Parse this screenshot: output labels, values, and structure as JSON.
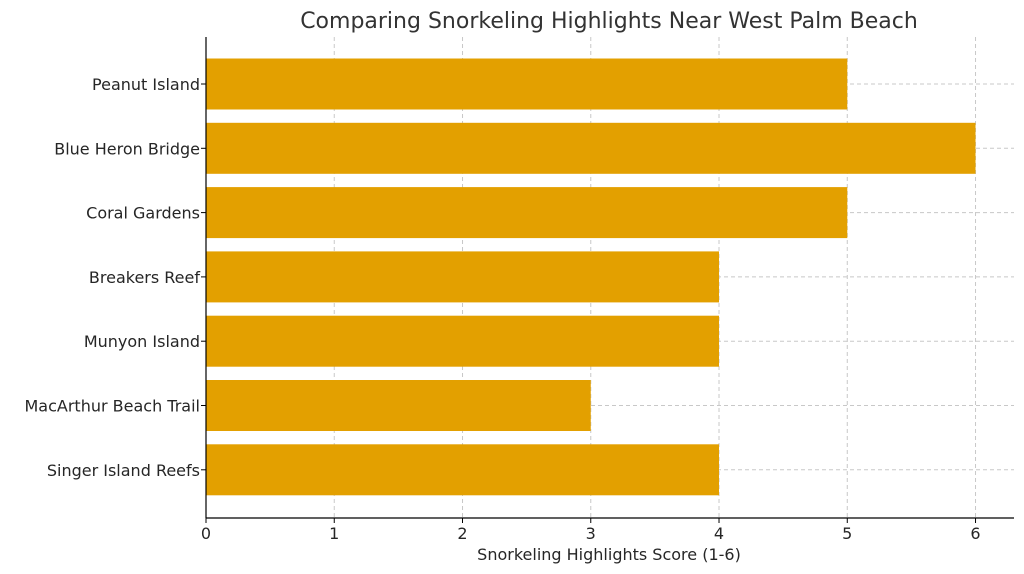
{
  "chart_data": {
    "type": "bar",
    "orientation": "horizontal",
    "title": "Comparing Snorkeling Highlights Near West Palm Beach",
    "xlabel": "Snorkeling Highlights Score (1-6)",
    "ylabel": "",
    "categories": [
      "Peanut Island",
      "Blue Heron Bridge",
      "Coral Gardens",
      "Breakers Reef",
      "Munyon Island",
      "MacArthur Beach Trail",
      "Singer Island Reefs"
    ],
    "values": [
      5,
      6,
      5,
      4,
      4,
      3,
      4
    ],
    "xlim": [
      0,
      6.3
    ],
    "x_ticks": [
      "0",
      "1",
      "2",
      "3",
      "4",
      "5",
      "6"
    ],
    "grid": true,
    "bar_color": "#E3A000"
  }
}
